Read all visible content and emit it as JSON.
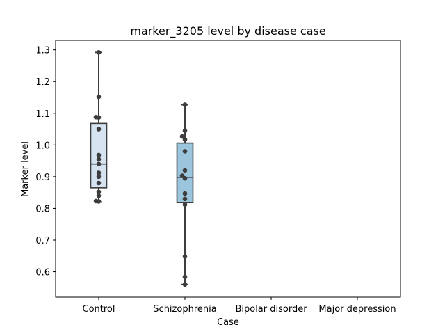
{
  "chart_data": {
    "type": "box",
    "title": "marker_3205 level by disease case",
    "xlabel": "Case",
    "ylabel": "Marker level",
    "categories": [
      "Control",
      "Schizophrenia",
      "Bipolar disorder",
      "Major depression"
    ],
    "ylim": [
      0.52,
      1.33
    ],
    "yticks": [
      "0.6",
      "0.7",
      "0.8",
      "0.9",
      "1.0",
      "1.1",
      "1.2",
      "1.3"
    ],
    "grid": false,
    "legend": "none",
    "box_colors": [
      "#d6e4f2",
      "#9ac5dc"
    ],
    "edge_color": "#3d3d3d",
    "point_color": "#3d3d3d",
    "boxes": [
      {
        "category": "Control",
        "whisker_low": 0.82,
        "q1": 0.865,
        "median": 0.94,
        "q3": 1.068,
        "whisker_high": 1.292
      },
      {
        "category": "Schizophrenia",
        "whisker_low": 0.56,
        "q1": 0.818,
        "median": 0.898,
        "q3": 1.006,
        "whisker_high": 1.127
      }
    ],
    "points": [
      {
        "category": "Control",
        "values": [
          0.822,
          0.823,
          0.84,
          0.852,
          0.88,
          0.9,
          0.912,
          0.94,
          0.955,
          0.968,
          1.05,
          1.087,
          1.088,
          1.152,
          1.292
        ]
      },
      {
        "category": "Schizophrenia",
        "values": [
          0.56,
          0.584,
          0.648,
          0.812,
          0.83,
          0.847,
          0.895,
          0.903,
          0.92,
          0.98,
          1.017,
          1.027,
          1.045,
          1.127
        ]
      }
    ]
  }
}
